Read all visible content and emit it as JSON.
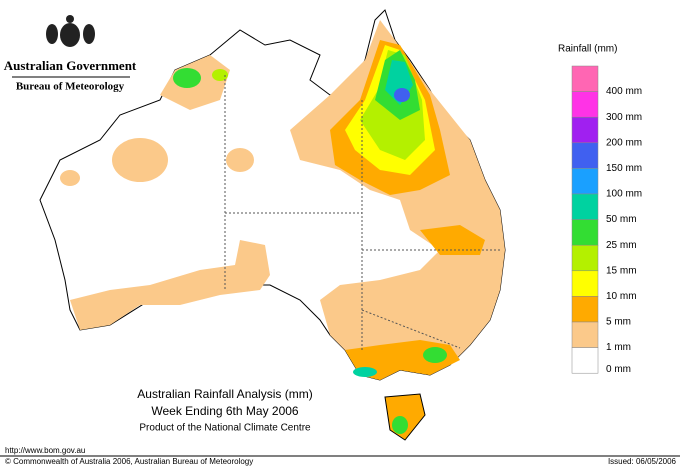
{
  "header": {
    "government": "Australian Government",
    "bureau": "Bureau of Meteorology"
  },
  "legend": {
    "title": "Rainfall (mm)",
    "items": [
      {
        "color": "#ff66b3",
        "label": "400 mm"
      },
      {
        "color": "#ff33e6",
        "label": "300 mm"
      },
      {
        "color": "#a020f0",
        "label": "200 mm"
      },
      {
        "color": "#4060f0",
        "label": "150 mm"
      },
      {
        "color": "#1aa0ff",
        "label": "100 mm"
      },
      {
        "color": "#00d2a0",
        "label": "50 mm"
      },
      {
        "color": "#33dd33",
        "label": "25 mm"
      },
      {
        "color": "#b4f000",
        "label": "15 mm"
      },
      {
        "color": "#ffff00",
        "label": "10 mm"
      },
      {
        "color": "#ffaa00",
        "label": "5 mm"
      },
      {
        "color": "#fbc98a",
        "label": "1 mm"
      },
      {
        "color": "#ffffff",
        "label": "0 mm"
      }
    ]
  },
  "map_title": {
    "line1": "Australian Rainfall Analysis (mm)",
    "line2": "Week Ending 6th May 2006",
    "line3": "Product of the National Climate Centre"
  },
  "footer": {
    "url": "http://www.bom.gov.au",
    "copyright": "© Commonwealth of Australia 2006, Australian Bureau of Meteorology",
    "issued": "Issued: 06/05/2006"
  }
}
